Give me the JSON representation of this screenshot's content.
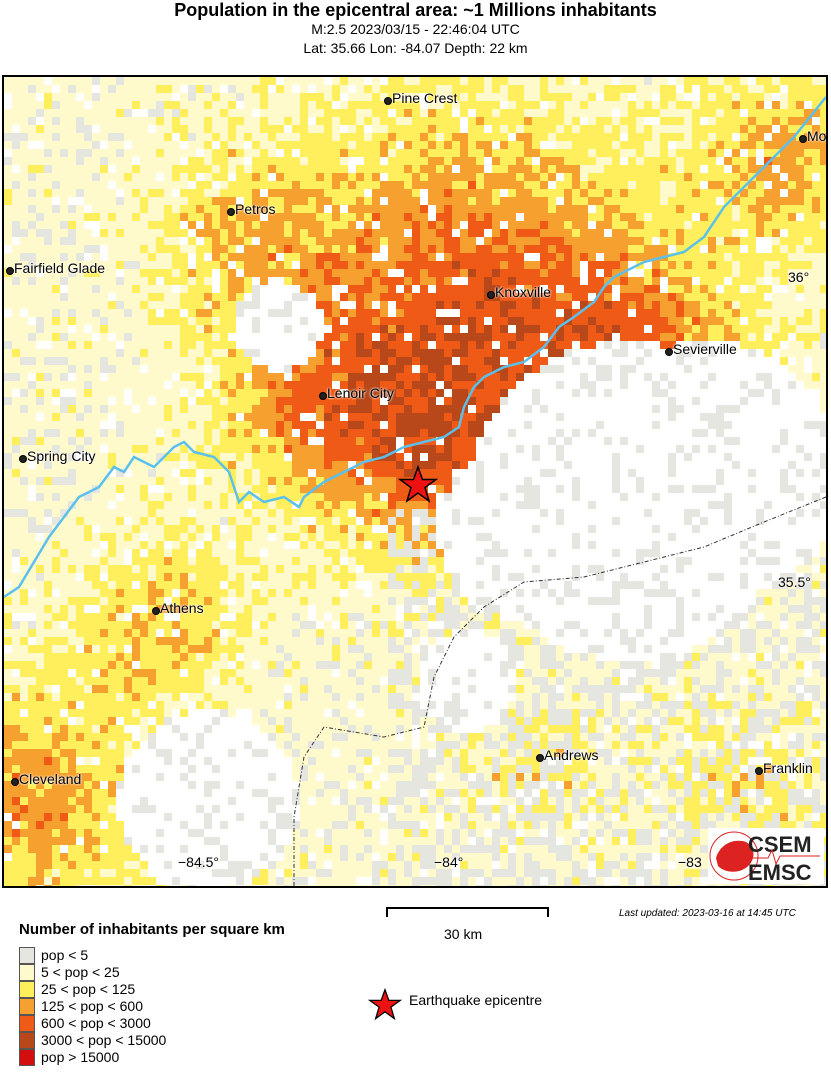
{
  "header": {
    "title": "Population in the epicentral area: ~1 Millions inhabitants",
    "event": "M:2.5 2023/03/15 - 22:46:04 UTC",
    "location": "Lat: 35.66 Lon: -84.07 Depth: 22 km"
  },
  "map": {
    "cities": [
      "Pine Crest",
      "Mo",
      "Petros",
      "Fairfield Glade",
      "Knoxville",
      "Sevierville",
      "Lenoir City",
      "Spring City",
      "Athens",
      "Cleveland",
      "Andrews",
      "Franklin"
    ],
    "lat_ticks": [
      "36°",
      "35.5°"
    ],
    "lon_ticks": [
      "−84.5°",
      "−84°",
      "−83"
    ],
    "epicentre": {
      "lat": 35.66,
      "lon": -84.07
    },
    "river_color": "#5bc0eb",
    "logo": {
      "top": "CSEM",
      "bottom": "EMSC"
    }
  },
  "legend": {
    "title": "Number of inhabitants per square km",
    "classes": [
      {
        "label": "pop < 5",
        "color": "#e6e6e1"
      },
      {
        "label": "5 < pop < 25",
        "color": "#fffacc"
      },
      {
        "label": "25 < pop < 125",
        "color": "#ffef5c"
      },
      {
        "label": "125 < pop < 600",
        "color": "#f6a02f"
      },
      {
        "label": "600 < pop < 3000",
        "color": "#f05a17"
      },
      {
        "label": "3000 < pop < 15000",
        "color": "#b8481a"
      },
      {
        "label": "pop > 15000",
        "color": "#d40e0e"
      }
    ],
    "epicentre_label": "Earthquake epicentre",
    "epicentre_color": "#ee1111"
  },
  "scale": {
    "label": "30 km"
  },
  "last_updated": "Last updated: 2023-03-16 at 14:45 UTC"
}
